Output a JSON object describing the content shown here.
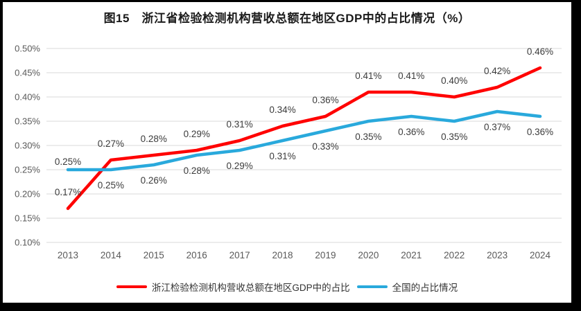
{
  "title": "图15　浙江省检验检测机构营收总额在地区GDP中的占比情况（%）",
  "chart_data": {
    "type": "line",
    "title": "图15　浙江省检验检测机构营收总额在地区GDP中的占比情况（%）",
    "categories": [
      "2013",
      "2014",
      "2015",
      "2016",
      "2017",
      "2018",
      "2019",
      "2020",
      "2021",
      "2022",
      "2023",
      "2024"
    ],
    "series": [
      {
        "name": "浙江检验检测机构营收总额在地区GDP中的占比",
        "color": "#FF0000",
        "values": [
          0.17,
          0.27,
          0.28,
          0.29,
          0.31,
          0.34,
          0.36,
          0.41,
          0.41,
          0.4,
          0.42,
          0.46
        ],
        "labels": [
          "0.17%",
          "0.27%",
          "0.28%",
          "0.29%",
          "0.31%",
          "0.34%",
          "0.36%",
          "0.41%",
          "0.41%",
          "0.40%",
          "0.42%",
          "0.46%"
        ],
        "label_position": "above"
      },
      {
        "name": "全国的占比情况",
        "color": "#29A9DC",
        "values": [
          0.25,
          0.25,
          0.26,
          0.28,
          0.29,
          0.31,
          0.33,
          0.35,
          0.36,
          0.35,
          0.37,
          0.36
        ],
        "labels": [
          "0.25%",
          "0.25%",
          "0.26%",
          "0.28%",
          "0.29%",
          "0.31%",
          "0.33%",
          "0.35%",
          "0.36%",
          "0.35%",
          "0.37%",
          "0.36%"
        ],
        "label_position": "below",
        "label_position_overrides": {
          "0": "above-close"
        }
      }
    ],
    "y_ticks": [
      "0.50%",
      "0.45%",
      "0.40%",
      "0.35%",
      "0.30%",
      "0.25%",
      "0.20%",
      "0.15%",
      "0.10%"
    ],
    "ylim": [
      0.1,
      0.5
    ],
    "xlabel": "",
    "ylabel": "",
    "grid": true,
    "legend_position": "bottom",
    "axis_text_color": "#595959",
    "grid_color": "#D9D9D9",
    "label_text_color": "#3B3B3B",
    "background_color": "#FFFFFF",
    "frame_color": "#000000"
  }
}
